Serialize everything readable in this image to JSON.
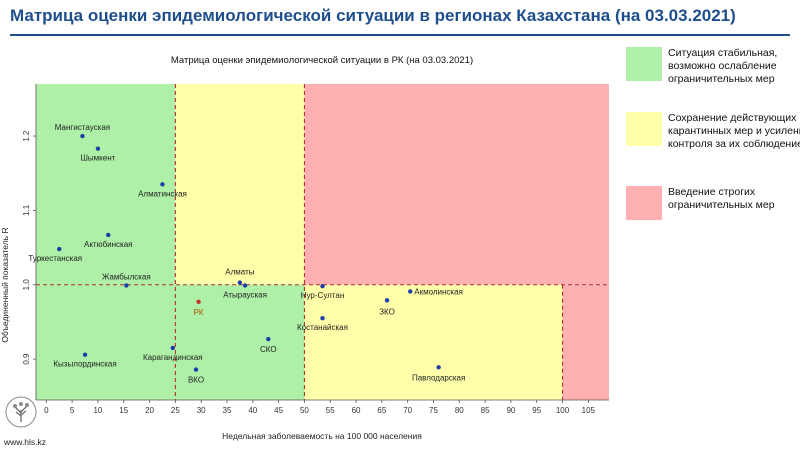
{
  "header": {
    "title": "Матрица оценки эпидемиологической ситуации в регионах Казахстана (на 03.03.2021)"
  },
  "legend": [
    {
      "color": "#aef0a8",
      "text": "Ситуация стабильная, возможно ослабление ограничительных мер"
    },
    {
      "color": "#ffffaa",
      "text": "Сохранение действующих карантинных мер и усиление контроля за их соблюдением"
    },
    {
      "color": "#ffb0b0",
      "text": "Введение строгих ограничительных мер"
    }
  ],
  "footer": {
    "url": "www.hls.kz"
  },
  "chart_data": {
    "type": "scatter",
    "title": "Матрица оценки эпидемиологической ситуации в РК (на 03.03.2021)",
    "xlabel": "Недельная заболеваемость на 100 000 населения",
    "ylabel": "Объединенный показатель R",
    "xlim": [
      -2,
      109
    ],
    "ylim": [
      0.845,
      1.27
    ],
    "x_ticks": [
      0,
      5,
      10,
      15,
      20,
      25,
      30,
      35,
      40,
      45,
      50,
      55,
      60,
      65,
      70,
      75,
      80,
      85,
      90,
      95,
      100,
      105
    ],
    "y_ticks": [
      0.9,
      1.0,
      1.1,
      1.2
    ],
    "zones": [
      {
        "x": [
          -2,
          25
        ],
        "y": [
          1.0,
          1.27
        ],
        "color": "#aef0a8"
      },
      {
        "x": [
          25,
          50
        ],
        "y": [
          1.0,
          1.27
        ],
        "color": "#ffffaa"
      },
      {
        "x": [
          50,
          109
        ],
        "y": [
          1.0,
          1.27
        ],
        "color": "#ffb0b0"
      },
      {
        "x": [
          -2,
          50
        ],
        "y": [
          0.845,
          1.0
        ],
        "color": "#aef0a8"
      },
      {
        "x": [
          50,
          100
        ],
        "y": [
          0.845,
          1.0
        ],
        "color": "#ffffaa"
      },
      {
        "x": [
          100,
          109
        ],
        "y": [
          0.845,
          1.0
        ],
        "color": "#ffb0b0"
      }
    ],
    "thresholds": {
      "x": [
        25,
        50,
        100
      ],
      "y": 1.0
    },
    "points": [
      {
        "label": "Мангистауская",
        "x": 7.0,
        "y": 1.2,
        "color": "#1f3ea8",
        "label_color": "#222222",
        "dx": 0,
        "dy": -6,
        "anchor": "middle"
      },
      {
        "label": "Шымкент",
        "x": 10.0,
        "y": 1.183,
        "color": "#1f3ea8",
        "label_color": "#222222",
        "dx": 0,
        "dy": 12,
        "anchor": "middle"
      },
      {
        "label": "Алматинская",
        "x": 22.5,
        "y": 1.135,
        "color": "#1f3ea8",
        "label_color": "#222222",
        "dx": 0,
        "dy": 12,
        "anchor": "middle"
      },
      {
        "label": "Актюбинская",
        "x": 12.0,
        "y": 1.067,
        "color": "#1f3ea8",
        "label_color": "#222222",
        "dx": 0,
        "dy": 12,
        "anchor": "middle"
      },
      {
        "label": "Туркестанская",
        "x": 2.5,
        "y": 1.048,
        "color": "#1f3ea8",
        "label_color": "#222222",
        "dx": -4,
        "dy": 12,
        "anchor": "middle"
      },
      {
        "label": "Жамбылская",
        "x": 15.5,
        "y": 0.999,
        "color": "#1f3ea8",
        "label_color": "#222222",
        "dx": 0,
        "dy": -6,
        "anchor": "middle"
      },
      {
        "label": "Алматы",
        "x": 37.5,
        "y": 1.003,
        "color": "#1f3ea8",
        "label_color": "#222222",
        "dx": 0,
        "dy": -8,
        "anchor": "middle"
      },
      {
        "label": "Атырауская",
        "x": 38.5,
        "y": 0.999,
        "color": "#1f3ea8",
        "label_color": "#222222",
        "dx": 0,
        "dy": 12,
        "anchor": "middle"
      },
      {
        "label": "РК",
        "x": 29.5,
        "y": 0.977,
        "color": "#c0392b",
        "label_color": "#a05a00",
        "dx": 0,
        "dy": 13,
        "anchor": "middle"
      },
      {
        "label": "Нур-Султан",
        "x": 53.5,
        "y": 0.998,
        "color": "#1f3ea8",
        "label_color": "#222222",
        "dx": 0,
        "dy": 12,
        "anchor": "middle"
      },
      {
        "label": "Акмолинская",
        "x": 70.5,
        "y": 0.991,
        "color": "#1f3ea8",
        "label_color": "#222222",
        "dx": 4,
        "dy": 3,
        "anchor": "start"
      },
      {
        "label": "ЗКО",
        "x": 66.0,
        "y": 0.979,
        "color": "#1f3ea8",
        "label_color": "#222222",
        "dx": 0,
        "dy": 14,
        "anchor": "middle"
      },
      {
        "label": "Костанайская",
        "x": 53.5,
        "y": 0.955,
        "color": "#1f3ea8",
        "label_color": "#222222",
        "dx": 0,
        "dy": 12,
        "anchor": "middle"
      },
      {
        "label": "СКО",
        "x": 43.0,
        "y": 0.927,
        "color": "#1f3ea8",
        "label_color": "#222222",
        "dx": 0,
        "dy": 13,
        "anchor": "middle"
      },
      {
        "label": "Карагандинская",
        "x": 24.5,
        "y": 0.915,
        "color": "#1f3ea8",
        "label_color": "#222222",
        "dx": 0,
        "dy": 12,
        "anchor": "middle"
      },
      {
        "label": "Кызылординская",
        "x": 7.5,
        "y": 0.906,
        "color": "#1f3ea8",
        "label_color": "#222222",
        "dx": 0,
        "dy": 12,
        "anchor": "middle"
      },
      {
        "label": "ВКО",
        "x": 29.0,
        "y": 0.886,
        "color": "#1f3ea8",
        "label_color": "#222222",
        "dx": 0,
        "dy": 13,
        "anchor": "middle"
      },
      {
        "label": "Павлодарская",
        "x": 76.0,
        "y": 0.889,
        "color": "#1f3ea8",
        "label_color": "#222222",
        "dx": 0,
        "dy": 13,
        "anchor": "middle"
      }
    ]
  }
}
